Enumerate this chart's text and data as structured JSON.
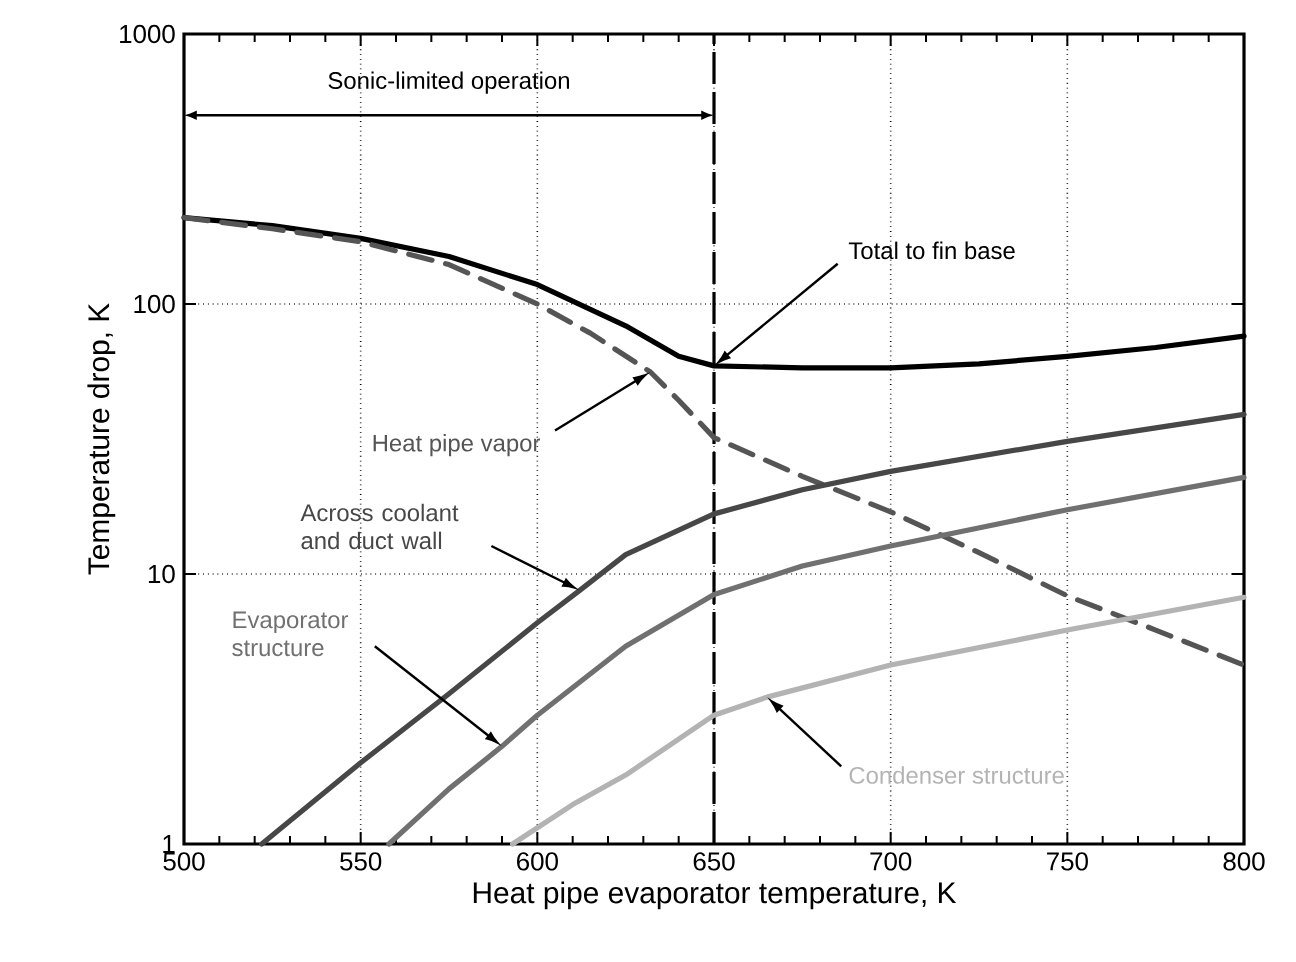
{
  "chart_data": {
    "type": "line",
    "xlabel": "Heat pipe evaporator temperature, K",
    "ylabel": "Temperature drop, K",
    "log": "y",
    "grid": true,
    "marker": "none",
    "xlim": [
      500,
      800
    ],
    "ylim": [
      1,
      1000
    ],
    "xticks": [
      500,
      550,
      600,
      650,
      700,
      750,
      800
    ],
    "yticks": [
      1,
      10,
      100,
      1000
    ],
    "ref_lines": [
      {
        "axis": "x",
        "value": 650,
        "color": "#000000",
        "line_style": "dashed"
      }
    ],
    "annotations": [
      "Sonic-limited operation"
    ],
    "series": [
      {
        "name": "Total to fin base",
        "color": "#000000",
        "line_style": "solid",
        "x": [
          500,
          525,
          550,
          575,
          600,
          625,
          640,
          650,
          675,
          700,
          725,
          750,
          775,
          800
        ],
        "values": [
          209,
          195,
          175,
          150,
          118,
          83,
          64,
          59,
          58,
          58,
          60,
          64,
          69,
          76
        ]
      },
      {
        "name": "Heat pipe vapor",
        "color": "#555555",
        "line_style": "dashed",
        "x": [
          500,
          525,
          550,
          575,
          600,
          615,
          632,
          640,
          650,
          675,
          700,
          725,
          750,
          775,
          800
        ],
        "values": [
          209,
          190,
          170,
          140,
          100,
          78,
          56,
          44,
          32,
          23,
          17,
          12,
          8.3,
          6.2,
          4.6
        ]
      },
      {
        "name": "Across coolant and duct wall",
        "color": "#474747",
        "line_style": "solid",
        "x": [
          522,
          550,
          575,
          600,
          612,
          625,
          650,
          675,
          700,
          750,
          800
        ],
        "values": [
          1,
          2.0,
          3.6,
          6.6,
          8.7,
          11.8,
          16.7,
          20.5,
          24,
          31,
          39
        ]
      },
      {
        "name": "Evaporator structure",
        "color": "#707070",
        "line_style": "solid",
        "x": [
          558,
          575,
          590,
          600,
          625,
          650,
          675,
          700,
          750,
          800
        ],
        "values": [
          1,
          1.6,
          2.3,
          3.0,
          5.4,
          8.4,
          10.7,
          12.7,
          17.3,
          22.8
        ]
      },
      {
        "name": "Condenser structure",
        "color": "#b3b3b3",
        "line_style": "solid",
        "x": [
          593,
          610,
          625,
          650,
          665,
          700,
          750,
          800
        ],
        "values": [
          1,
          1.4,
          1.8,
          3.0,
          3.5,
          4.6,
          6.2,
          8.2
        ]
      }
    ]
  }
}
